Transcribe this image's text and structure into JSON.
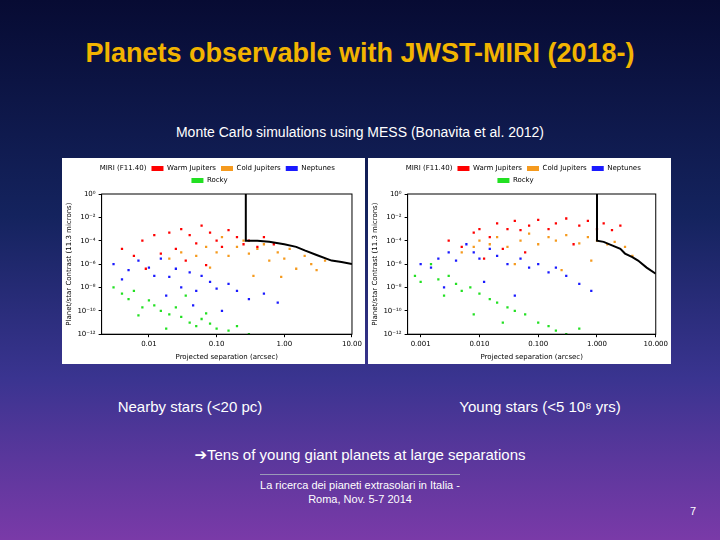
{
  "title": "Planets observable with JWST-MIRI (2018-)",
  "subtitle": "Monte Carlo simulations using MESS (Bonavita et al. 2012)",
  "conclusion": "➔Tens of young giant planets at large separations",
  "footer": [
    "La ricerca dei pianeti extrasolari in Italia -",
    "Roma, Nov. 5-7 2014"
  ],
  "page": 7,
  "chart_data": [
    {
      "type": "scatter",
      "caption": "Nearby stars (<20 pc)",
      "x_label": "Projected separation (arcsec)",
      "y_label": "Planet/star Contrast (11.3 microns)",
      "log": true,
      "grid": false,
      "legend": "top",
      "xlim": [
        0.002,
        10
      ],
      "xticks": [
        0.01,
        {
          "value": 0.1,
          "label": "0.10"
        },
        {
          "value": 1,
          "label": "1.00"
        },
        {
          "value": 10,
          "label": "10.00"
        }
      ],
      "ylim": [
        1e-12,
        1
      ],
      "yticks": [
        {
          "value": 1,
          "label": "10⁰"
        },
        {
          "value": 0.01,
          "label": "10⁻²"
        },
        {
          "value": 0.0001,
          "label": "10⁻⁴"
        },
        {
          "value": 1e-06,
          "label": "10⁻⁶"
        },
        {
          "value": 1e-08,
          "label": "10⁻⁸"
        },
        {
          "value": 1e-10,
          "label": "10⁻¹⁰"
        },
        {
          "value": 1e-12,
          "label": "10⁻¹²"
        }
      ],
      "series": [
        {
          "name": "MIRI (F11.40)",
          "type": "line",
          "color": "#000000",
          "marker": "none",
          "line_style": "solid",
          "x": [
            0.27,
            0.27,
            0.4,
            0.6,
            1,
            1.5,
            2,
            3,
            5,
            7,
            10
          ],
          "values": [
            1,
            0.0001,
            0.0001,
            8e-05,
            5e-05,
            3e-05,
            1.5e-05,
            6e-06,
            2e-06,
            1.5e-06,
            1e-06
          ]
        },
        {
          "name": "Warm Jupiters",
          "color": "#ff0000",
          "marker": "square",
          "x": [
            0.004,
            0.006,
            0.008,
            0.012,
            0.015,
            0.02,
            0.025,
            0.03,
            0.04,
            0.05,
            0.06,
            0.08,
            0.1,
            0.12,
            0.15,
            0.2,
            0.25,
            0.3,
            0.4,
            0.5,
            0.7,
            0.009,
            0.035,
            0.07
          ],
          "values": [
            2e-05,
            5e-06,
            0.0001,
            0.0003,
            8e-06,
            0.0005,
            2e-05,
            0.001,
            0.0003,
            6e-05,
            0.002,
            0.0005,
            0.0001,
            3e-05,
            0.0008,
            0.0002,
            5e-05,
            0.0001,
            3e-05,
            0.0002,
            5e-05,
            4e-07,
            2e-06,
            8e-07
          ]
        },
        {
          "name": "Cold Jupiters",
          "color": "#f59a1e",
          "marker": "square",
          "x": [
            0.02,
            0.03,
            0.05,
            0.07,
            0.1,
            0.12,
            0.15,
            0.2,
            0.25,
            0.3,
            0.4,
            0.5,
            0.6,
            0.8,
            1,
            1.2,
            1.5,
            2,
            2.5,
            3,
            4,
            0.08,
            0.35,
            0.9
          ],
          "values": [
            3e-06,
            1e-05,
            5e-06,
            3e-05,
            1e-05,
            0.0002,
            5e-06,
            3e-05,
            0.0001,
            8e-06,
            2e-05,
            5e-05,
            2e-06,
            1e-05,
            3e-06,
            2e-05,
            4e-07,
            5e-06,
            1e-06,
            3e-07,
            2e-06,
            5e-07,
            1e-07,
            8e-08
          ]
        },
        {
          "name": "Neptunes",
          "color": "#1a1aff",
          "marker": "square",
          "x": [
            0.003,
            0.005,
            0.007,
            0.01,
            0.012,
            0.015,
            0.02,
            0.025,
            0.03,
            0.04,
            0.05,
            0.06,
            0.08,
            0.1,
            0.15,
            0.2,
            0.3,
            0.5,
            0.8,
            0.004,
            0.018,
            0.045,
            0.12
          ],
          "values": [
            1e-06,
            3e-07,
            2e-06,
            5e-07,
            1e-07,
            3e-06,
            8e-08,
            4e-07,
            1e-08,
            2e-07,
            5e-09,
            1e-07,
            3e-08,
            8e-09,
            2e-08,
            5e-09,
            1e-09,
            3e-09,
            5e-10,
            5e-08,
            2e-09,
            3e-10,
            1e-10
          ]
        },
        {
          "name": "Rocky",
          "color": "#22e022",
          "marker": "square",
          "x": [
            0.003,
            0.004,
            0.005,
            0.006,
            0.008,
            0.01,
            0.012,
            0.015,
            0.02,
            0.025,
            0.03,
            0.04,
            0.05,
            0.06,
            0.08,
            0.1,
            0.15,
            0.2,
            0.3,
            0.007,
            0.018,
            0.035,
            0.07
          ],
          "values": [
            1e-08,
            3e-09,
            1e-09,
            5e-09,
            2e-10,
            8e-10,
            3e-10,
            1e-10,
            5e-11,
            2e-10,
            3e-11,
            1e-11,
            5e-12,
            2e-11,
            8e-12,
            3e-12,
            2e-12,
            5e-12,
            1e-12,
            4e-11,
            3e-12,
            2e-09,
            6e-11
          ]
        }
      ]
    },
    {
      "type": "scatter",
      "caption": "Young stars (<5 10⁸ yrs)",
      "x_label": "Projected separation (arcsec)",
      "y_label": "Planet/star Contrast (11.3 microns)",
      "log": true,
      "grid": false,
      "legend": "top",
      "xlim": [
        0.0006,
        10
      ],
      "xticks": [
        0.001,
        {
          "value": 0.01,
          "label": "0.010"
        },
        {
          "value": 0.1,
          "label": "0.100"
        },
        {
          "value": 1,
          "label": "1.000"
        },
        {
          "value": 10,
          "label": "10.000"
        }
      ],
      "ylim": [
        1e-12,
        1
      ],
      "yticks": [
        {
          "value": 1,
          "label": "10⁰"
        },
        {
          "value": 0.01,
          "label": "10⁻²"
        },
        {
          "value": 0.0001,
          "label": "10⁻⁴"
        },
        {
          "value": 1e-06,
          "label": "10⁻⁶"
        },
        {
          "value": 1e-08,
          "label": "10⁻⁸"
        },
        {
          "value": 1e-10,
          "label": "10⁻¹⁰"
        },
        {
          "value": 1e-12,
          "label": "10⁻¹²"
        }
      ],
      "series": [
        {
          "name": "MIRI (F11.40)",
          "type": "line",
          "color": "#000000",
          "marker": "none",
          "line_style": "solid",
          "x": [
            1,
            1,
            1.3,
            1.8,
            2.5,
            3,
            4,
            5,
            7,
            10
          ],
          "values": [
            1,
            0.0001,
            8e-05,
            4e-05,
            2e-05,
            8e-06,
            4e-06,
            2e-06,
            5e-07,
            1.5e-07
          ]
        },
        {
          "name": "Warm Jupiters",
          "color": "#ff0000",
          "marker": "square",
          "x": [
            0.003,
            0.005,
            0.008,
            0.01,
            0.015,
            0.02,
            0.03,
            0.04,
            0.05,
            0.07,
            0.1,
            0.15,
            0.2,
            0.3,
            0.5,
            0.7,
            1,
            1.3,
            1.8,
            2.5,
            0.012,
            0.06,
            0.4,
            0.025
          ],
          "values": [
            0.0001,
            3e-05,
            0.0005,
            0.001,
            0.0002,
            0.003,
            0.001,
            0.005,
            0.0008,
            0.002,
            0.006,
            0.001,
            0.003,
            0.008,
            0.002,
            0.005,
            0.001,
            0.003,
            0.0008,
            0.002,
            3e-06,
            1e-05,
            5e-05,
            2e-05
          ]
        },
        {
          "name": "Cold Jupiters",
          "color": "#f59a1e",
          "marker": "square",
          "x": [
            0.005,
            0.008,
            0.01,
            0.015,
            0.02,
            0.03,
            0.05,
            0.07,
            0.1,
            0.15,
            0.2,
            0.3,
            0.5,
            0.7,
            1,
            1.5,
            2,
            3,
            4,
            0.04,
            0.25,
            0.8
          ],
          "values": [
            1e-05,
            3e-05,
            0.0001,
            5e-05,
            0.0002,
            3e-05,
            0.0001,
            0.0004,
            5e-05,
            0.0002,
            0.0001,
            0.0003,
            6e-05,
            0.0002,
            0.0001,
            5e-05,
            8e-05,
            3e-05,
            5e-06,
            1e-06,
            3e-07,
            2e-06
          ]
        },
        {
          "name": "Neptunes",
          "color": "#1a1aff",
          "marker": "square",
          "x": [
            0.001,
            0.0015,
            0.002,
            0.003,
            0.004,
            0.006,
            0.008,
            0.01,
            0.015,
            0.02,
            0.03,
            0.05,
            0.07,
            0.1,
            0.15,
            0.2,
            0.3,
            0.5,
            0.8,
            0.0025,
            0.012,
            0.04
          ],
          "values": [
            1e-06,
            5e-07,
            3e-06,
            1e-05,
            2e-06,
            5e-05,
            1e-05,
            3e-06,
            2e-05,
            5e-06,
            1e-06,
            3e-06,
            5e-07,
            1e-06,
            2e-07,
            5e-07,
            1e-07,
            2e-08,
            5e-09,
            1e-08,
            3e-08,
            2e-09
          ]
        },
        {
          "name": "Rocky",
          "color": "#22e022",
          "marker": "square",
          "x": [
            0.0008,
            0.001,
            0.0015,
            0.002,
            0.003,
            0.004,
            0.005,
            0.007,
            0.01,
            0.015,
            0.02,
            0.03,
            0.04,
            0.06,
            0.1,
            0.15,
            0.2,
            0.3,
            0.5,
            0.0025,
            0.008,
            0.025
          ],
          "values": [
            1e-07,
            3e-08,
            1e-06,
            5e-08,
            1e-07,
            2e-08,
            5e-09,
            1e-08,
            3e-09,
            1e-09,
            5e-10,
            2e-10,
            1e-10,
            5e-11,
            1e-11,
            5e-12,
            2e-12,
            1e-12,
            3e-12,
            2e-09,
            5e-11,
            1e-11
          ]
        }
      ]
    }
  ]
}
